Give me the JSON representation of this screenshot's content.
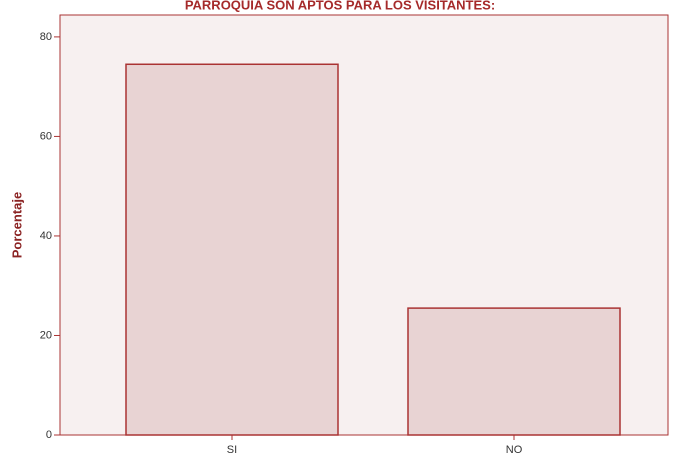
{
  "chart_data": {
    "type": "bar",
    "title": "PARROQUIA SON APTOS PARA LOS VISITANTES:",
    "ylabel": "Porcentaje",
    "categories": [
      "SI",
      "NO"
    ],
    "values": [
      74.5,
      25.5
    ],
    "color": "#e8d3d3",
    "ylim": [
      0,
      84.4
    ],
    "yticks": [
      0,
      20,
      40,
      60,
      80
    ]
  }
}
